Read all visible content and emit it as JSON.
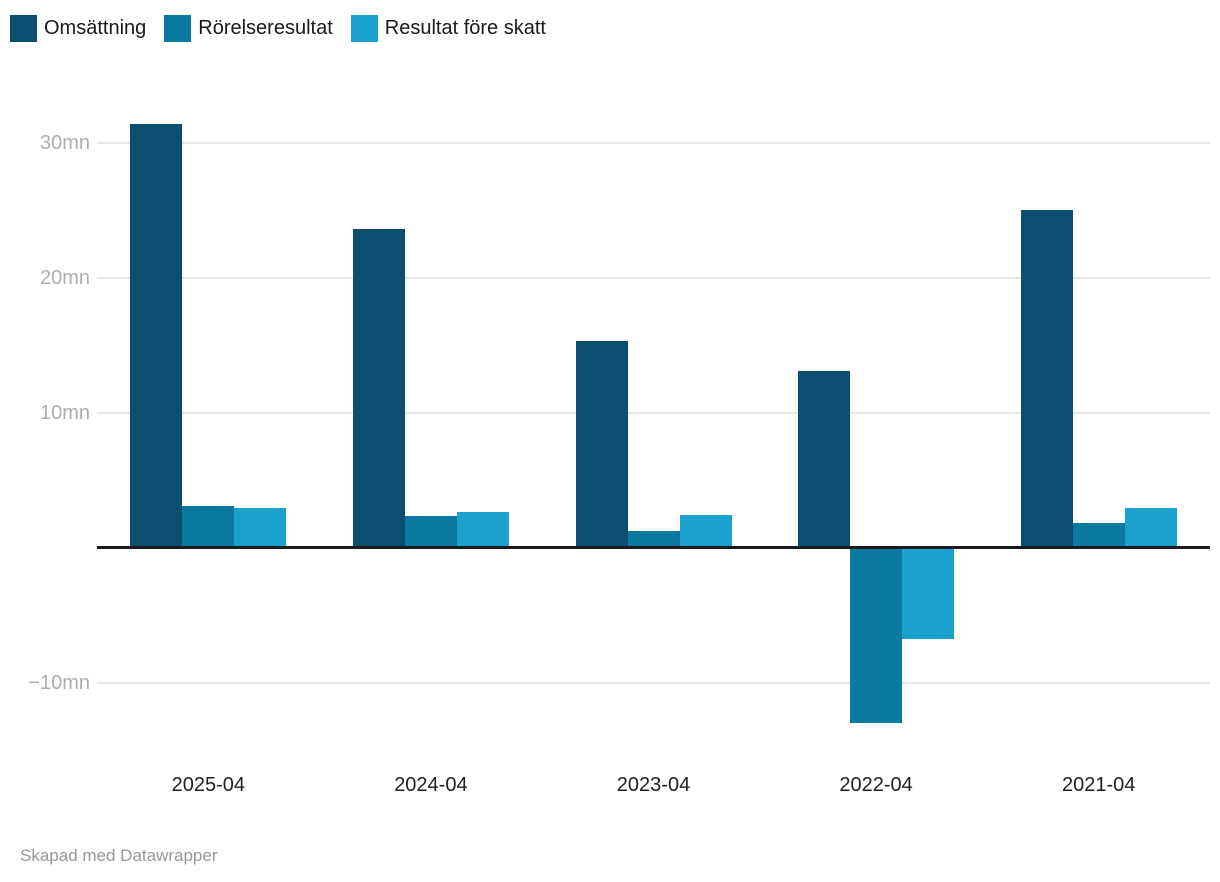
{
  "chart_data": {
    "type": "bar",
    "title": "",
    "xlabel": "",
    "ylabel": "",
    "unit": "mn",
    "categories": [
      "2025-04",
      "2024-04",
      "2023-04",
      "2022-04",
      "2021-04"
    ],
    "series": [
      {
        "name": "Omsättning",
        "color": "#0c4e6f",
        "values": [
          31.4,
          23.6,
          15.3,
          13.1,
          25.0
        ]
      },
      {
        "name": "Rörelseresultat",
        "color": "#0a7aa1",
        "values": [
          3.1,
          2.3,
          1.2,
          -13.0,
          1.8
        ]
      },
      {
        "name": "Resultat före skatt",
        "color": "#1ba1ce",
        "values": [
          2.9,
          2.6,
          2.4,
          -6.8,
          2.9
        ]
      }
    ],
    "y_ticks": [
      {
        "value": 30,
        "label": "30mn"
      },
      {
        "value": 20,
        "label": "20mn"
      },
      {
        "value": 10,
        "label": "10mn"
      },
      {
        "value": -10,
        "label": "−10mn"
      }
    ],
    "ylim": [
      -13.5,
      32.5
    ],
    "grid": true,
    "legend_position": "top-left",
    "colors": {
      "grid": "#e7e7e7",
      "zero_axis": "#1a1b1f",
      "y_tick_text": "#aeaeae",
      "x_tick_text": "#1f1f1f",
      "legend_text": "#191919",
      "credit_text": "#979797"
    }
  },
  "footer": {
    "credit": "Skapad med Datawrapper"
  }
}
